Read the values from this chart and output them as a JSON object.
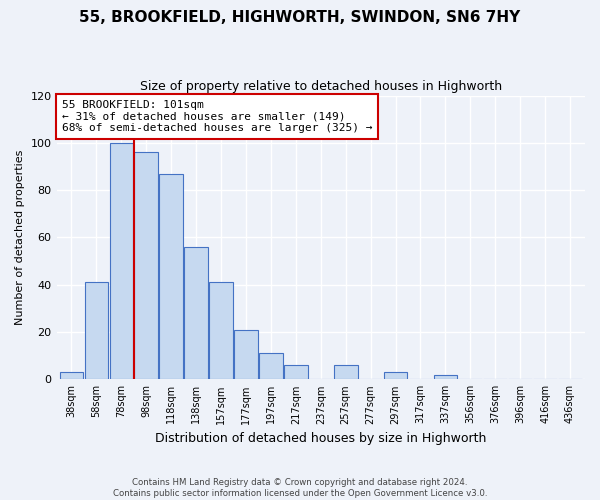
{
  "title": "55, BROOKFIELD, HIGHWORTH, SWINDON, SN6 7HY",
  "subtitle": "Size of property relative to detached houses in Highworth",
  "xlabel": "Distribution of detached houses by size in Highworth",
  "ylabel": "Number of detached properties",
  "bin_labels": [
    "38sqm",
    "58sqm",
    "78sqm",
    "98sqm",
    "118sqm",
    "138sqm",
    "157sqm",
    "177sqm",
    "197sqm",
    "217sqm",
    "237sqm",
    "257sqm",
    "277sqm",
    "297sqm",
    "317sqm",
    "337sqm",
    "356sqm",
    "376sqm",
    "396sqm",
    "416sqm",
    "436sqm"
  ],
  "bar_values": [
    3,
    41,
    100,
    96,
    87,
    56,
    41,
    21,
    11,
    6,
    0,
    6,
    0,
    3,
    0,
    2,
    0,
    0,
    0,
    0,
    0
  ],
  "bar_color": "#c6d9f0",
  "bar_edge_color": "#4472c4",
  "property_line_x": 2.5,
  "annotation_text": "55 BROOKFIELD: 101sqm\n← 31% of detached houses are smaller (149)\n68% of semi-detached houses are larger (325) →",
  "annotation_box_color": "#ffffff",
  "annotation_box_edge": "#cc0000",
  "property_line_color": "#cc0000",
  "ylim": [
    0,
    120
  ],
  "yticks": [
    0,
    20,
    40,
    60,
    80,
    100,
    120
  ],
  "footer_text": "Contains HM Land Registry data © Crown copyright and database right 2024.\nContains public sector information licensed under the Open Government Licence v3.0.",
  "background_color": "#eef2f9"
}
